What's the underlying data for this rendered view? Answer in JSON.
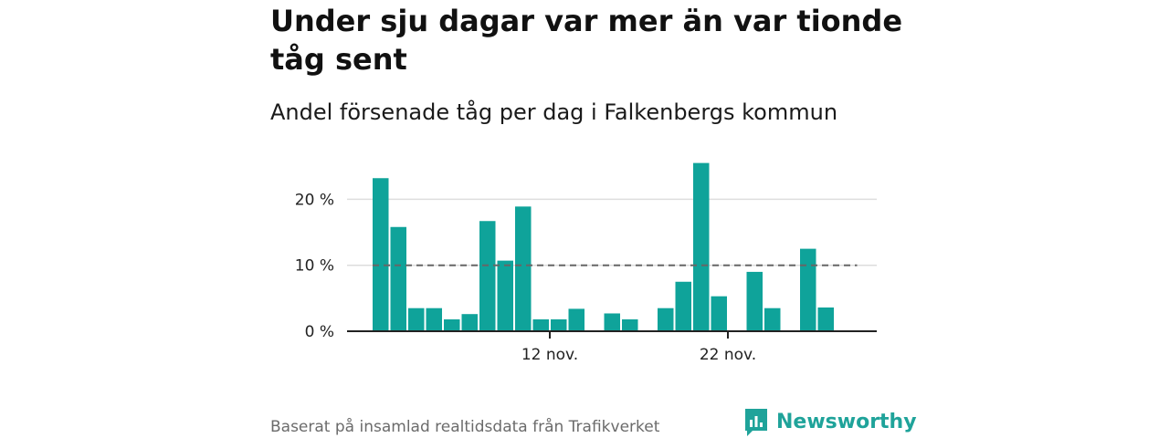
{
  "header": {
    "title": "Under sju dagar var mer än var tionde tåg sent",
    "subtitle": "Andel försenade tåg per dag i Falkenbergs kommun"
  },
  "footer": {
    "source": "Baserat på insamlad realtidsdata från Trafikverket",
    "brand": "Newsworthy"
  },
  "colors": {
    "bar": "#0fa39a",
    "reference": "#666666",
    "grid": "#dddddd",
    "brand": "#1fa39a"
  },
  "chart_data": {
    "type": "bar",
    "categories": [
      "2 nov.",
      "3 nov.",
      "4 nov.",
      "5 nov.",
      "6 nov.",
      "7 nov.",
      "8 nov.",
      "9 nov.",
      "10 nov.",
      "11 nov.",
      "12 nov.",
      "13 nov.",
      "14 nov.",
      "15 nov.",
      "16 nov.",
      "17 nov.",
      "18 nov.",
      "19 nov.",
      "20 nov.",
      "21 nov.",
      "22 nov.",
      "23 nov.",
      "24 nov.",
      "25 nov.",
      "26 nov.",
      "27 nov.",
      "28 nov.",
      "29 nov."
    ],
    "values": [
      23.2,
      15.8,
      3.5,
      3.5,
      1.8,
      2.6,
      16.7,
      10.7,
      18.9,
      1.8,
      1.8,
      3.4,
      null,
      2.7,
      1.8,
      null,
      3.5,
      7.5,
      25.5,
      5.3,
      null,
      9.0,
      3.5,
      null,
      12.5,
      3.6,
      null,
      null
    ],
    "x_tick_labels": [
      "12 nov.",
      "22 nov."
    ],
    "y_ticks": [
      0,
      10,
      20
    ],
    "y_tick_labels": [
      "0 %",
      "10 %",
      "20 %"
    ],
    "ylim": [
      0,
      26
    ],
    "reference_line": {
      "value": 10,
      "style": "dashed"
    },
    "grid": true
  }
}
